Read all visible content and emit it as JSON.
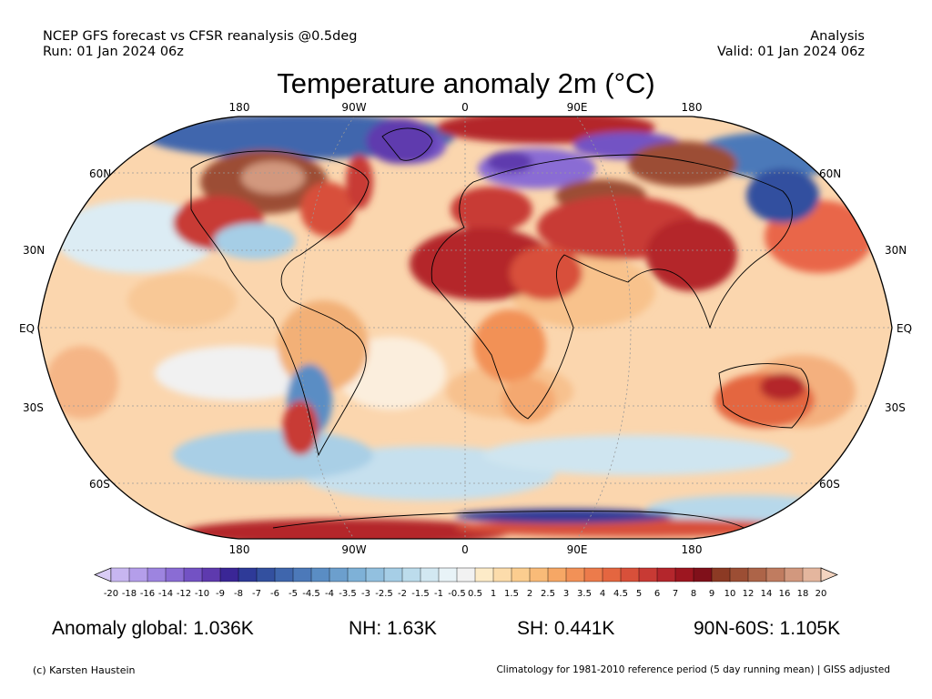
{
  "header": {
    "left_line1": "NCEP GFS forecast vs CFSR reanalysis @0.5deg",
    "left_line2": "Run: 01 Jan 2024 06z",
    "right_line1": "Analysis",
    "right_line2": "Valid: 01 Jan 2024 06z"
  },
  "title": "Temperature anomaly 2m (°C)",
  "map": {
    "projection": "Robinson",
    "lon_labels": [
      "180",
      "90W",
      "0",
      "90E",
      "180"
    ],
    "lat_labels_left": [
      "60N",
      "30N",
      "EQ",
      "30S",
      "60S"
    ],
    "lat_labels_right": [
      "60N",
      "30N",
      "EQ",
      "30S",
      "60S"
    ],
    "ocean_base_color": "#fbd3a6",
    "regions": [
      {
        "name": "Siberia/Scandinavia cold",
        "color": "#8a6fe0"
      },
      {
        "name": "Canada warm",
        "color": "#9b5040"
      },
      {
        "name": "Sahara warm",
        "color": "#b0202a"
      },
      {
        "name": "Southern Ocean cool",
        "color": "#9cc8e6"
      }
    ]
  },
  "colorbar": {
    "ticks": [
      "-20",
      "-18",
      "-16",
      "-14",
      "-12",
      "-10",
      "-9",
      "-8",
      "-7",
      "-6",
      "-5",
      "-4.5",
      "-4",
      "-3.5",
      "-3",
      "-2.5",
      "-2",
      "-1.5",
      "-1",
      "-0.5",
      "0.5",
      "1",
      "1.5",
      "2",
      "2.5",
      "3",
      "3.5",
      "4",
      "4.5",
      "5",
      "6",
      "7",
      "8",
      "9",
      "10",
      "12",
      "14",
      "16",
      "18",
      "20"
    ],
    "colors": [
      "#d9ccf5",
      "#c7b6f0",
      "#b49eea",
      "#9d84e0",
      "#8a6cd4",
      "#7352c4",
      "#5e3aae",
      "#3a2696",
      "#2e3a98",
      "#33509f",
      "#3f66ad",
      "#4c79b9",
      "#5a8dc4",
      "#6c9fcd",
      "#7eb1d7",
      "#92c0df",
      "#a6cee6",
      "#bcdcec",
      "#d2e8f2",
      "#e8f3f7",
      "#f2f2f2",
      "#fdebc8",
      "#fcdcab",
      "#fbcd8f",
      "#f9bb78",
      "#f6a765",
      "#f29157",
      "#ec7b4b",
      "#e46640",
      "#d8503a",
      "#c83a34",
      "#b4262c",
      "#9d1620",
      "#80101a",
      "#8c3a24",
      "#9c4e34",
      "#ad6448",
      "#c07c60",
      "#d2987e",
      "#e4b69e",
      "#f3d4c0"
    ]
  },
  "stats": {
    "global": "Anomaly global: 1.036K",
    "nh": "NH: 1.63K",
    "sh": "SH: 0.441K",
    "arctic": "90N-60S: 1.105K"
  },
  "footer": {
    "credit": "(c) Karsten Haustein",
    "climatology": "Climatology for 1981-2010 reference period (5 day running mean) | GISS adjusted"
  }
}
